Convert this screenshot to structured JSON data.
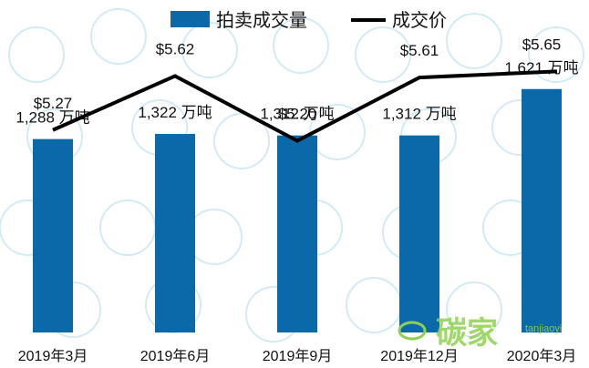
{
  "chart_data": {
    "type": "bar+line",
    "categories": [
      "2019年3月",
      "2019年6月",
      "2019年9月",
      "2019年12月",
      "2020年3月"
    ],
    "series": [
      {
        "name": "拍卖成交量",
        "kind": "bar",
        "unit": "万吨",
        "values": [
          1288,
          1322,
          1312,
          1312,
          1621
        ],
        "labels": [
          "1,288 万吨",
          "1,322 万吨",
          "1,312 万吨",
          "1,312 万吨",
          "1,621 万吨"
        ],
        "color": "#0b69a9"
      },
      {
        "name": "成交价",
        "kind": "line",
        "values": [
          5.27,
          5.62,
          5.2,
          5.61,
          5.65
        ],
        "labels": [
          "$5.27",
          "$5.62",
          "$5.20",
          "$5.61",
          "$5.65"
        ],
        "color": "#000000"
      }
    ],
    "legend": {
      "position": "top",
      "entries": [
        "拍卖成交量",
        "成交价"
      ]
    },
    "bar_ylim": [
      0,
      1850
    ],
    "line_ylim": [
      4.1,
      5.9
    ],
    "grid": false
  },
  "watermark": {
    "brand": "碳家",
    "latin": "tanjiaoyi",
    "color": "#8fd14f"
  }
}
